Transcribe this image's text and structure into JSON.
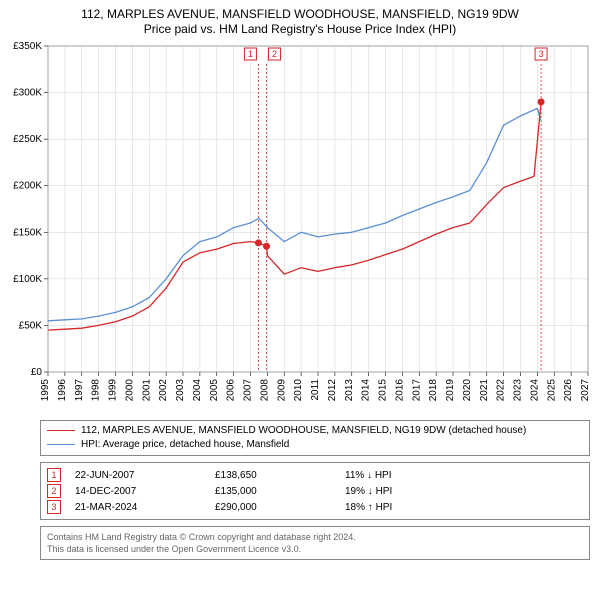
{
  "title_line1": "112, MARPLES AVENUE, MANSFIELD WOODHOUSE, MANSFIELD, NG19 9DW",
  "title_line2": "Price paid vs. HM Land Registry's House Price Index (HPI)",
  "chart": {
    "type": "line",
    "background": "#ffffff",
    "plot_bg": "#ffffff",
    "grid_color": "#d9d9d9",
    "border_color": "#888888",
    "x": {
      "min": 1995,
      "max": 2027,
      "ticks": [
        1995,
        1996,
        1997,
        1998,
        1999,
        2000,
        2001,
        2002,
        2003,
        2004,
        2005,
        2006,
        2007,
        2008,
        2009,
        2010,
        2011,
        2012,
        2013,
        2014,
        2015,
        2016,
        2017,
        2018,
        2019,
        2020,
        2021,
        2022,
        2023,
        2024,
        2025,
        2026,
        2027
      ],
      "label_fontsize": 10
    },
    "y": {
      "min": 0,
      "max": 350000,
      "ticks": [
        0,
        50000,
        100000,
        150000,
        200000,
        250000,
        300000,
        350000
      ],
      "tick_labels": [
        "£0",
        "£50K",
        "£100K",
        "£150K",
        "£200K",
        "£250K",
        "£300K",
        "£350K"
      ],
      "label_fontsize": 10
    },
    "series": [
      {
        "id": "hpi",
        "name": "HPI: Average price, detached house, Mansfield",
        "color": "#5b8fd6",
        "width": 1.3,
        "x": [
          1995,
          1996,
          1997,
          1998,
          1999,
          2000,
          2001,
          2002,
          2003,
          2004,
          2005,
          2006,
          2007,
          2007.5,
          2008,
          2009,
          2010,
          2011,
          2012,
          2013,
          2014,
          2015,
          2016,
          2017,
          2018,
          2019,
          2020,
          2021,
          2022,
          2023,
          2024,
          2024.2
        ],
        "y": [
          55000,
          56000,
          57000,
          60000,
          64000,
          70000,
          80000,
          100000,
          125000,
          140000,
          145000,
          155000,
          160000,
          165000,
          155000,
          140000,
          150000,
          145000,
          148000,
          150000,
          155000,
          160000,
          168000,
          175000,
          182000,
          188000,
          195000,
          225000,
          265000,
          275000,
          283000,
          270000
        ]
      },
      {
        "id": "price",
        "name": "112, MARPLES AVENUE, MANSFIELD WOODHOUSE, MANSFIELD, NG19 9DW (detached house)",
        "color": "#d62728",
        "width": 1.3,
        "x": [
          1995,
          1996,
          1997,
          1998,
          1999,
          2000,
          2001,
          2002,
          2003,
          2004,
          2005,
          2006,
          2007,
          2007.47,
          2007.95,
          2008,
          2009,
          2010,
          2011,
          2012,
          2013,
          2014,
          2015,
          2016,
          2017,
          2018,
          2019,
          2020,
          2021,
          2022,
          2023,
          2023.8,
          2024.22
        ],
        "y": [
          45000,
          46000,
          47000,
          50000,
          54000,
          60000,
          70000,
          90000,
          118000,
          128000,
          132000,
          138000,
          140000,
          138650,
          135000,
          125000,
          105000,
          112000,
          108000,
          112000,
          115000,
          120000,
          126000,
          132000,
          140000,
          148000,
          155000,
          160000,
          180000,
          198000,
          205000,
          210000,
          290000
        ]
      }
    ],
    "markers": [
      {
        "x": 2007.47,
        "y": 138650,
        "color": "#d62728",
        "r": 3.5
      },
      {
        "x": 2007.95,
        "y": 135000,
        "color": "#d62728",
        "r": 3.5
      },
      {
        "x": 2024.22,
        "y": 290000,
        "color": "#d62728",
        "r": 3.5
      }
    ],
    "callouts": [
      {
        "n": "1",
        "x": 2007.47,
        "color": "#d62728"
      },
      {
        "n": "2",
        "x": 2007.95,
        "color": "#d62728"
      },
      {
        "n": "3",
        "x": 2024.22,
        "color": "#d62728"
      }
    ]
  },
  "legend": {
    "items": [
      {
        "color": "#d62728",
        "label": "112, MARPLES AVENUE, MANSFIELD WOODHOUSE, MANSFIELD, NG19 9DW (detached house)"
      },
      {
        "color": "#5b8fd6",
        "label": "HPI: Average price, detached house, Mansfield"
      }
    ]
  },
  "transactions": [
    {
      "n": "1",
      "color": "#d62728",
      "date": "22-JUN-2007",
      "price": "£138,650",
      "hpi": "11% ↓ HPI"
    },
    {
      "n": "2",
      "color": "#d62728",
      "date": "14-DEC-2007",
      "price": "£135,000",
      "hpi": "19% ↓ HPI"
    },
    {
      "n": "3",
      "color": "#d62728",
      "date": "21-MAR-2024",
      "price": "£290,000",
      "hpi": "18% ↑ HPI"
    }
  ],
  "footer": {
    "line1": "Contains HM Land Registry data © Crown copyright and database right 2024.",
    "line2": "This data is licensed under the Open Government Licence v3.0."
  }
}
